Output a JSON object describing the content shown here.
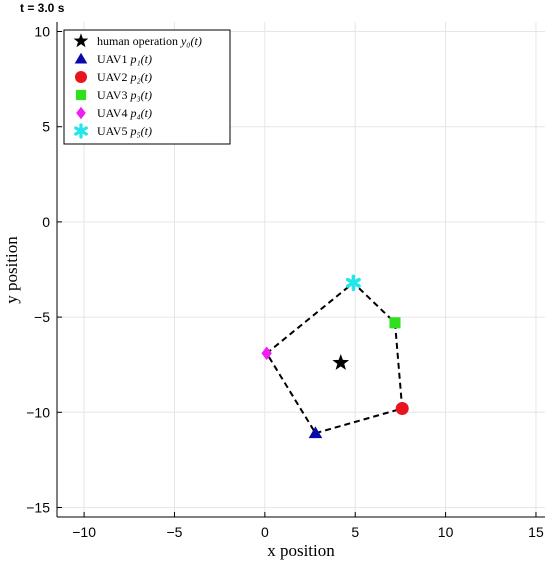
{
  "time_label": "t = 3.0 s",
  "chart_data": {
    "type": "scatter",
    "xlabel": "x position",
    "ylabel": "y position",
    "xlim": [
      -11.5,
      15.5
    ],
    "ylim": [
      -15.5,
      10.5
    ],
    "xticks": [
      -10,
      -5,
      0,
      5,
      10,
      15
    ],
    "yticks": [
      -15,
      -10,
      -5,
      0,
      5,
      10
    ],
    "xtick_labels": [
      "−10",
      "−5",
      "0",
      "5",
      "10",
      "15"
    ],
    "ytick_labels": [
      "−15",
      "−10",
      "−5",
      "0",
      "5",
      "10"
    ],
    "grid": true,
    "legend_position": "top-left",
    "series": [
      {
        "name": "human operation",
        "math": "y₀(t)",
        "marker": "star",
        "color": "#000000",
        "x": 4.2,
        "y": -7.4
      },
      {
        "name": "UAV1",
        "math": "p₁(t)",
        "marker": "triangle",
        "color": "#0a0aa8",
        "x": 2.8,
        "y": -11.1
      },
      {
        "name": "UAV2",
        "math": "p₂(t)",
        "marker": "circle",
        "color": "#e8141e",
        "x": 7.6,
        "y": -9.8
      },
      {
        "name": "UAV3",
        "math": "p₃(t)",
        "marker": "square",
        "color": "#2ee01e",
        "x": 7.2,
        "y": -5.3
      },
      {
        "name": "UAV4",
        "math": "p₄(t)",
        "marker": "diamond",
        "color": "#f01ef0",
        "x": 0.1,
        "y": -6.9
      },
      {
        "name": "UAV5",
        "math": "p₅(t)",
        "marker": "asterisk",
        "color": "#22e6ea",
        "x": 4.9,
        "y": -3.2
      }
    ],
    "formation_outline": {
      "style": "dashed",
      "color": "#000000",
      "order": [
        "UAV1",
        "UAV2",
        "UAV3",
        "UAV5",
        "UAV4"
      ]
    }
  }
}
